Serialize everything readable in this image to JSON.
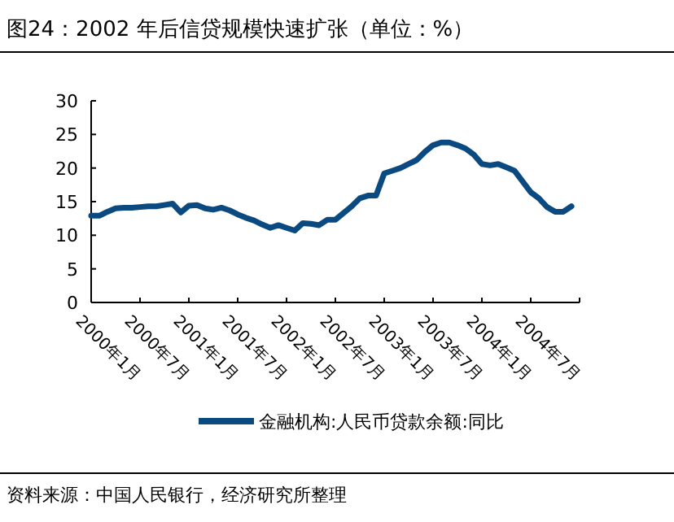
{
  "chart_data": {
    "type": "line",
    "title": "图24：2002 年后信贷规模快速扩张（单位：%）",
    "x": [
      "2000-01",
      "2000-02",
      "2000-03",
      "2000-04",
      "2000-05",
      "2000-06",
      "2000-07",
      "2000-08",
      "2000-09",
      "2000-10",
      "2000-11",
      "2000-12",
      "2001-01",
      "2001-02",
      "2001-03",
      "2001-04",
      "2001-05",
      "2001-06",
      "2001-07",
      "2001-08",
      "2001-09",
      "2001-10",
      "2001-11",
      "2001-12",
      "2002-01",
      "2002-02",
      "2002-03",
      "2002-04",
      "2002-05",
      "2002-06",
      "2002-07",
      "2002-08",
      "2002-09",
      "2002-10",
      "2002-11",
      "2002-12",
      "2003-01",
      "2003-02",
      "2003-03",
      "2003-04",
      "2003-05",
      "2003-06",
      "2003-07",
      "2003-08",
      "2003-09",
      "2003-10",
      "2003-11",
      "2003-12",
      "2004-01",
      "2004-02",
      "2004-03",
      "2004-04",
      "2004-05",
      "2004-06",
      "2004-07",
      "2004-08",
      "2004-09",
      "2004-10",
      "2004-11",
      "2004-12"
    ],
    "series": [
      {
        "name": "金融机构:人民币贷款余额:同比",
        "color": "#0b4a80",
        "values": [
          12.9,
          12.9,
          13.5,
          14.0,
          14.1,
          14.1,
          14.2,
          14.3,
          14.3,
          14.5,
          14.7,
          13.4,
          14.4,
          14.5,
          14.0,
          13.8,
          14.1,
          13.7,
          13.1,
          12.6,
          12.2,
          11.6,
          11.1,
          11.5,
          11.1,
          10.7,
          11.8,
          11.7,
          11.5,
          12.3,
          12.3,
          13.3,
          14.3,
          15.5,
          15.9,
          15.9,
          19.2,
          19.6,
          20.0,
          20.6,
          21.2,
          22.4,
          23.4,
          23.8,
          23.8,
          23.4,
          22.9,
          22.0,
          20.6,
          20.4,
          20.6,
          20.1,
          19.6,
          18.0,
          16.4,
          15.5,
          14.2,
          13.5,
          13.5,
          14.3
        ]
      }
    ],
    "xlim": [
      "2000-01",
      "2005-01"
    ],
    "xticks": [
      {
        "value": "2000-01",
        "label": "2000年1月"
      },
      {
        "value": "2000-07",
        "label": "2000年7月"
      },
      {
        "value": "2001-01",
        "label": "2001年1月"
      },
      {
        "value": "2001-07",
        "label": "2001年7月"
      },
      {
        "value": "2002-01",
        "label": "2002年1月"
      },
      {
        "value": "2002-07",
        "label": "2002年7月"
      },
      {
        "value": "2003-01",
        "label": "2003年1月"
      },
      {
        "value": "2003-07",
        "label": "2003年7月"
      },
      {
        "value": "2004-01",
        "label": "2004年1月"
      },
      {
        "value": "2004-07",
        "label": "2004年7月"
      },
      {
        "value": "2005-01",
        "label": null
      }
    ],
    "ylim": [
      0,
      30
    ],
    "yticks": [
      0,
      5,
      10,
      15,
      20,
      25,
      30
    ],
    "legend": "bottom",
    "marker": "none",
    "line_style": "solid",
    "annotations": [
      "资料来源：中国人民银行，经济研究所整理"
    ]
  }
}
